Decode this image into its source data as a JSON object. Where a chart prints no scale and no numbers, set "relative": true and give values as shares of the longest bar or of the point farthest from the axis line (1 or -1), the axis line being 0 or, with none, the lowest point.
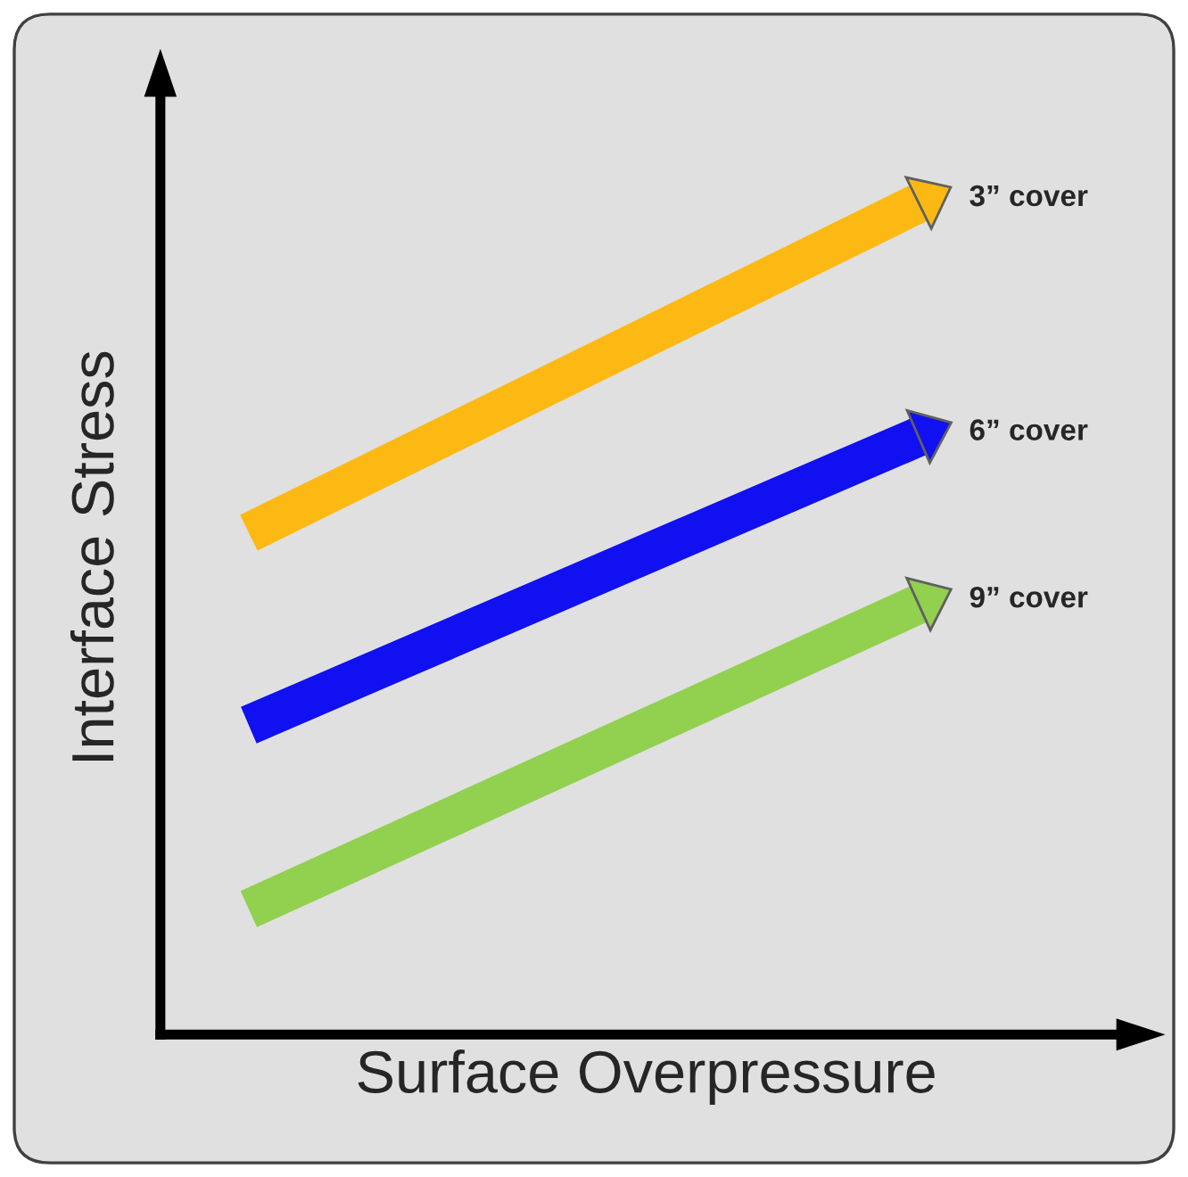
{
  "chart_data": {
    "type": "line",
    "relative": true,
    "xlabel": "Surface Overpressure",
    "ylabel": "Interface Stress",
    "categories": [
      null,
      null
    ],
    "legend": "right",
    "line_style": "solid",
    "series": [
      {
        "name": "3” cover",
        "color": "#fdb913",
        "values": [
          0.6,
          1.0
        ]
      },
      {
        "name": "6” cover",
        "color": "#1010f0",
        "values": [
          0.37,
          0.72
        ]
      },
      {
        "name": "9” cover",
        "color": "#92d050",
        "values": [
          0.15,
          0.52
        ]
      }
    ]
  }
}
